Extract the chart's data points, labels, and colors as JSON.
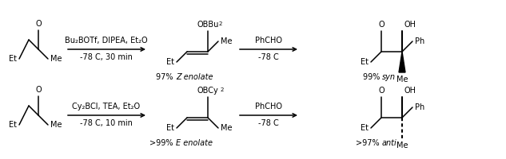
{
  "bg_color": "#ffffff",
  "line_color": "#000000",
  "figsize": [
    6.33,
    2.0
  ],
  "dpi": 100,
  "row1": {
    "reagent1": "Bu₂BOTf, DIPEA, Et₂O",
    "conditions1": "-78 C, 30 min",
    "reagent2": "PhCHO",
    "conditions2": "-78 C",
    "enolate_pct": "97% ",
    "enolate_type": "Z enolate",
    "product_pct": "99% ",
    "product_type": "syn"
  },
  "row2": {
    "reagent1": "Cy₂BCl, TEA, Et₂O",
    "conditions1": "-78 C, 10 min",
    "reagent2": "PhCHO",
    "conditions2": "-78 C",
    "enolate_pct": ">99% ",
    "enolate_type": "E enolate",
    "product_pct": ">97% ",
    "product_type": "anti"
  }
}
